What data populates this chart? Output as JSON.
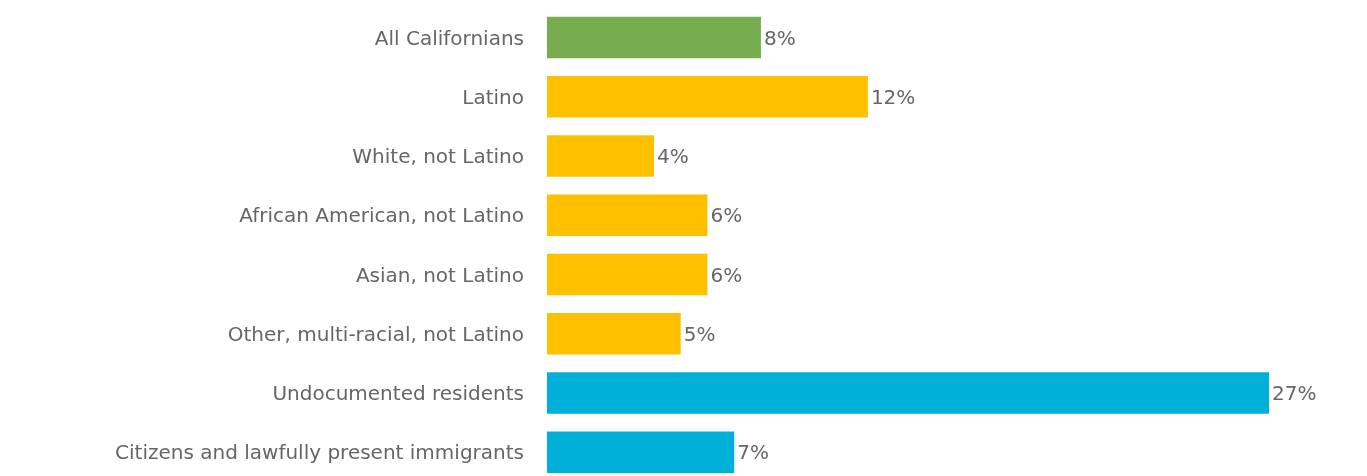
{
  "chart_data": {
    "type": "bar",
    "orientation": "horizontal",
    "categories": [
      "All Californians",
      "Latino",
      "White, not Latino",
      "African American, not Latino",
      "Asian, not Latino",
      "Other, multi-racial, not Latino",
      "Undocumented residents",
      "Citizens and lawfully present immigrants"
    ],
    "values": [
      8,
      12,
      4,
      6,
      6,
      5,
      27,
      7
    ],
    "colors": [
      "#77ac4f",
      "#ffc000",
      "#ffc000",
      "#ffc000",
      "#ffc000",
      "#ffc000",
      "#00b0d8",
      "#00b0d8"
    ],
    "value_labels": [
      "8%",
      "12%",
      "4%",
      "6%",
      "6%",
      "5%",
      "27%",
      "7%"
    ],
    "tick_labels": "y"
  }
}
